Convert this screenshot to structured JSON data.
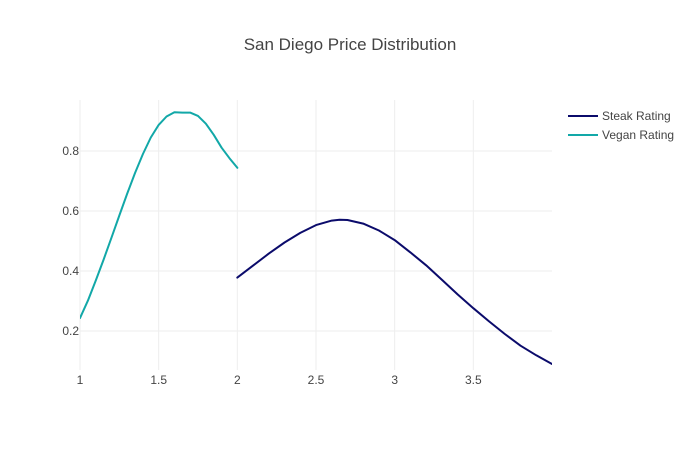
{
  "chart_data": {
    "type": "line",
    "title": "San Diego Price Distribution",
    "xlabel": "",
    "ylabel": "",
    "xlim": [
      1,
      4
    ],
    "ylim": [
      0.07,
      0.97
    ],
    "xticks": [
      1,
      1.5,
      2,
      2.5,
      3,
      3.5
    ],
    "xtick_labels": [
      "1",
      "1.5",
      "2",
      "2.5",
      "3",
      "3.5"
    ],
    "yticks": [
      0.2,
      0.4,
      0.6,
      0.8
    ],
    "ytick_labels": [
      "0.2",
      "0.4",
      "0.6",
      "0.8"
    ],
    "grid": true,
    "legend_position": "top-right",
    "series": [
      {
        "name": "Steak Rating",
        "color": "#0b0b6b",
        "x": [
          2.0,
          2.1,
          2.2,
          2.3,
          2.4,
          2.5,
          2.6,
          2.65,
          2.7,
          2.8,
          2.9,
          3.0,
          3.1,
          3.2,
          3.3,
          3.4,
          3.5,
          3.6,
          3.7,
          3.8,
          3.9,
          4.0
        ],
        "y": [
          0.378,
          0.418,
          0.458,
          0.495,
          0.527,
          0.553,
          0.568,
          0.571,
          0.57,
          0.558,
          0.535,
          0.503,
          0.462,
          0.419,
          0.371,
          0.322,
          0.276,
          0.232,
          0.19,
          0.151,
          0.119,
          0.09
        ]
      },
      {
        "name": "Vegan Rating",
        "color": "#12a8a8",
        "x": [
          1.0,
          1.05,
          1.1,
          1.15,
          1.2,
          1.25,
          1.3,
          1.35,
          1.4,
          1.45,
          1.5,
          1.55,
          1.6,
          1.65,
          1.7,
          1.75,
          1.8,
          1.85,
          1.9,
          1.95,
          2.0
        ],
        "y": [
          0.243,
          0.301,
          0.368,
          0.438,
          0.511,
          0.585,
          0.658,
          0.727,
          0.79,
          0.845,
          0.887,
          0.915,
          0.929,
          0.928,
          0.928,
          0.917,
          0.891,
          0.854,
          0.811,
          0.776,
          0.744
        ]
      }
    ]
  }
}
